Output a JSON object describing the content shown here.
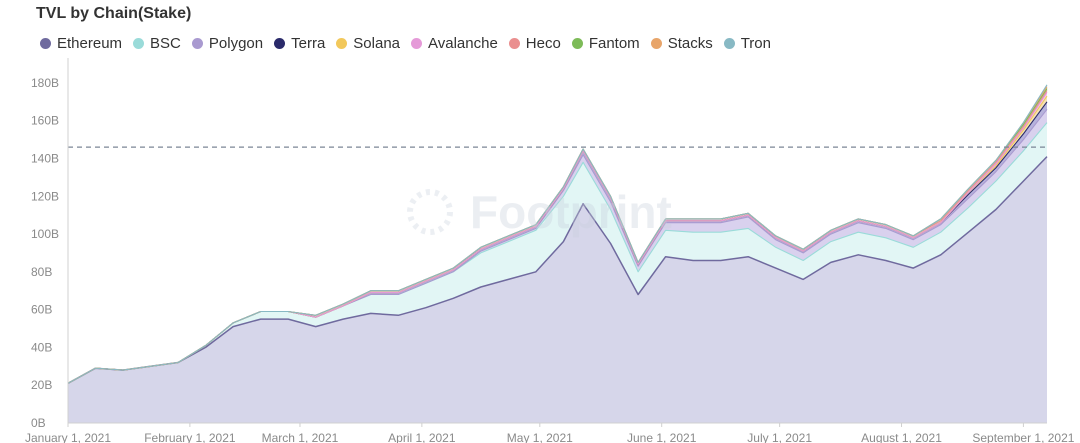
{
  "chart_data": {
    "type": "area",
    "stacked": true,
    "title": "TVL by Chain(Stake)",
    "legend_position": "top-left",
    "grid": false,
    "watermark": "Footprint",
    "reference_line": 146,
    "ylim": [
      0,
      190
    ],
    "y_ticks": [
      {
        "value": 0,
        "label": "0B"
      },
      {
        "value": 20,
        "label": "20B"
      },
      {
        "value": 40,
        "label": "40B"
      },
      {
        "value": 60,
        "label": "60B"
      },
      {
        "value": 80,
        "label": "80B"
      },
      {
        "value": 100,
        "label": "100B"
      },
      {
        "value": 120,
        "label": "120B"
      },
      {
        "value": 140,
        "label": "140B"
      },
      {
        "value": 160,
        "label": "160B"
      },
      {
        "value": 180,
        "label": "180B"
      }
    ],
    "x_ticks": [
      {
        "date": "2021-01-01",
        "label": "January 1, 2021"
      },
      {
        "date": "2021-02-01",
        "label": "February 1, 2021"
      },
      {
        "date": "2021-03-01",
        "label": "March 1, 2021"
      },
      {
        "date": "2021-04-01",
        "label": "April 1, 2021"
      },
      {
        "date": "2021-05-01",
        "label": "May 1, 2021"
      },
      {
        "date": "2021-06-01",
        "label": "June 1, 2021"
      },
      {
        "date": "2021-07-01",
        "label": "July 1, 2021"
      },
      {
        "date": "2021-08-01",
        "label": "August 1, 2021"
      },
      {
        "date": "2021-09-01",
        "label": "September 1, 2021"
      }
    ],
    "x_range": [
      "2021-01-01",
      "2021-09-07"
    ],
    "x": [
      "2021-01-01",
      "2021-01-08",
      "2021-01-15",
      "2021-01-22",
      "2021-01-29",
      "2021-02-05",
      "2021-02-12",
      "2021-02-19",
      "2021-02-26",
      "2021-03-05",
      "2021-03-12",
      "2021-03-19",
      "2021-03-26",
      "2021-04-02",
      "2021-04-09",
      "2021-04-16",
      "2021-04-23",
      "2021-04-30",
      "2021-05-07",
      "2021-05-12",
      "2021-05-19",
      "2021-05-26",
      "2021-06-02",
      "2021-06-09",
      "2021-06-16",
      "2021-06-23",
      "2021-06-30",
      "2021-07-07",
      "2021-07-14",
      "2021-07-21",
      "2021-07-28",
      "2021-08-04",
      "2021-08-11",
      "2021-08-18",
      "2021-08-25",
      "2021-09-01",
      "2021-09-07"
    ],
    "series": [
      {
        "name": "Ethereum",
        "color": "#6f6a9e",
        "fill": "#d6d6ea",
        "values": [
          21,
          29,
          28,
          30,
          32,
          40,
          51,
          55,
          55,
          51,
          55,
          58,
          57,
          61,
          66,
          72,
          76,
          80,
          96,
          116,
          95,
          68,
          88,
          86,
          86,
          88,
          82,
          76,
          85,
          89,
          86,
          82,
          89,
          101,
          113,
          128,
          141
        ]
      },
      {
        "name": "BSC",
        "color": "#9adbd9",
        "fill": "#e2f6f5",
        "values": [
          0,
          0,
          0,
          0,
          0,
          1,
          2,
          4,
          4,
          5,
          7,
          10,
          11,
          13,
          14,
          18,
          20,
          22,
          24,
          22,
          18,
          12,
          14,
          15,
          15,
          15,
          11,
          10,
          11,
          12,
          12,
          11,
          12,
          13,
          15,
          16,
          18
        ]
      },
      {
        "name": "Polygon",
        "color": "#a99ad0",
        "fill": "#d9d1ee",
        "values": [
          0,
          0,
          0,
          0,
          0,
          0,
          0,
          0,
          0,
          0,
          0,
          0,
          0,
          0,
          0,
          1,
          1,
          1,
          3,
          4,
          4,
          3,
          4,
          5,
          5,
          6,
          4,
          4,
          4,
          5,
          5,
          4,
          4,
          5,
          5,
          6,
          7
        ]
      },
      {
        "name": "Terra",
        "color": "#2a2a6a",
        "fill": "#b7b3dc",
        "values": [
          0,
          0,
          0,
          0,
          0,
          0,
          0,
          0,
          0,
          0,
          0,
          1,
          1,
          1,
          1,
          1,
          1,
          1,
          1,
          2,
          2,
          1,
          1,
          1,
          1,
          1,
          1,
          1,
          1,
          1,
          1,
          1,
          1,
          2,
          2,
          3,
          4
        ]
      },
      {
        "name": "Solana",
        "color": "#f2c85b",
        "fill": "#f6e3b5",
        "values": [
          0,
          0,
          0,
          0,
          0,
          0,
          0,
          0,
          0,
          0,
          0,
          0,
          0,
          0,
          0,
          0,
          0,
          0,
          0,
          0,
          0,
          0,
          0,
          0,
          0,
          0,
          0,
          0,
          0,
          0,
          0,
          0,
          0,
          1,
          1,
          2,
          3
        ]
      },
      {
        "name": "Avalanche",
        "color": "#e59ad8",
        "fill": "#f2cfec",
        "values": [
          0,
          0,
          0,
          0,
          0,
          0,
          0,
          0,
          0,
          0,
          0,
          0,
          0,
          0,
          0,
          0,
          0,
          0,
          0,
          0,
          0,
          0,
          0,
          0,
          0,
          0,
          0,
          0,
          0,
          0,
          0,
          0,
          0,
          0,
          1,
          1,
          2
        ]
      },
      {
        "name": "Heco",
        "color": "#ea8f8f",
        "fill": "#f3c8c6",
        "values": [
          0,
          0,
          0,
          0,
          0,
          0,
          0,
          0,
          0,
          1,
          1,
          1,
          1,
          1,
          1,
          1,
          1,
          1,
          1,
          1,
          1,
          1,
          1,
          1,
          1,
          1,
          1,
          1,
          1,
          1,
          1,
          1,
          1,
          1,
          1,
          1,
          1
        ]
      },
      {
        "name": "Fantom",
        "color": "#7dbb58",
        "fill": "#c5dfb2",
        "values": [
          0,
          0,
          0,
          0,
          0,
          0,
          0,
          0,
          0,
          0,
          0,
          0,
          0,
          0,
          0,
          0,
          0,
          0,
          0,
          0,
          0,
          0,
          0,
          0,
          0,
          0,
          0,
          0,
          0,
          0,
          0,
          0,
          1,
          1,
          1,
          1,
          1
        ]
      },
      {
        "name": "Stacks",
        "color": "#e8a56a",
        "fill": "#f1d1b1",
        "values": [
          0,
          0,
          0,
          0,
          0,
          0,
          0,
          0,
          0,
          0,
          0,
          0,
          0,
          0,
          0,
          0,
          0,
          0,
          0,
          0,
          0,
          0,
          0,
          0,
          0,
          0,
          0,
          0,
          0,
          0,
          0,
          0,
          0,
          0,
          0,
          1,
          1
        ]
      },
      {
        "name": "Tron",
        "color": "#88b9c4",
        "fill": "#cfe3e8",
        "values": [
          0,
          0,
          0,
          0,
          0,
          0,
          0,
          0,
          0,
          0,
          0,
          0,
          0,
          0,
          0,
          0,
          0,
          0,
          0,
          0,
          0,
          0,
          0,
          0,
          0,
          0,
          0,
          0,
          0,
          0,
          0,
          0,
          0,
          0,
          0,
          0,
          1
        ]
      }
    ]
  }
}
